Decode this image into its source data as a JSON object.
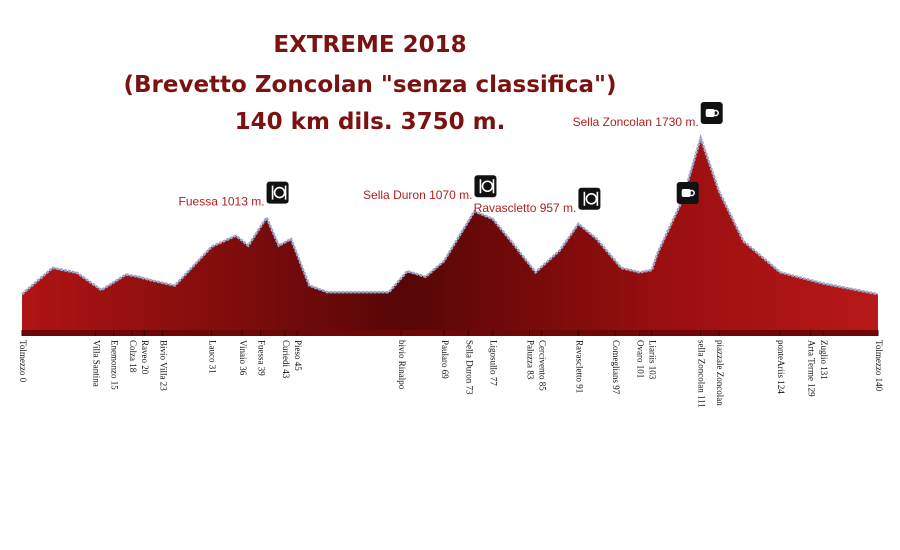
{
  "chart_data": {
    "type": "area",
    "title": [
      "EXTREME 2018",
      "(Brevetto Zoncolan \"senza classifica\")",
      "140 km  dils. 3750 m."
    ],
    "x": [
      0,
      5,
      9,
      13,
      17,
      19,
      21,
      25,
      31,
      35,
      37,
      40,
      42,
      44,
      47,
      50,
      60,
      63,
      66,
      69,
      74,
      77,
      80,
      84,
      88,
      91,
      94,
      98,
      101,
      103,
      104,
      108,
      111,
      114,
      118,
      124,
      131,
      140
    ],
    "series": [
      {
        "color": "#8e0d0d",
        "values": [
          323,
          560,
          515,
          360,
          500,
          480,
          450,
          400,
          750,
          850,
          760,
          1013,
          760,
          820,
          400,
          340,
          340,
          530,
          480,
          620,
          1070,
          1000,
          800,
          520,
          720,
          957,
          820,
          560,
          520,
          540,
          700,
          1170,
          1730,
          1250,
          800,
          520,
          420,
          323
        ]
      }
    ],
    "annotations": [
      {
        "text": "Fuessa 1013 m.",
        "x": 40,
        "y": 1013,
        "icon": "meal"
      },
      {
        "text": "Sella Duron 1070  m.",
        "x": 74,
        "y": 1070,
        "icon": "meal"
      },
      {
        "text": "Ravascletto 957 m.",
        "x": 91,
        "y": 957,
        "icon": "meal"
      },
      {
        "text": "Sella Zoncolan 1730  m.",
        "x": 111,
        "y": 1730,
        "icon": "cup"
      }
    ],
    "places": [
      {
        "label": "Tolmezzo 0",
        "x": 0
      },
      {
        "label": "Villa Santina",
        "x": 12
      },
      {
        "label": "Enemonzo 15",
        "x": 15
      },
      {
        "label": "Colza 18",
        "x": 18
      },
      {
        "label": "Raveo 20",
        "x": 20
      },
      {
        "label": "Bivio Villa 23",
        "x": 23
      },
      {
        "label": "Lauco 31",
        "x": 31
      },
      {
        "label": "Vinaio 36",
        "x": 36
      },
      {
        "label": "Fuessa 39",
        "x": 39
      },
      {
        "label": "Curiedi 43",
        "x": 43
      },
      {
        "label": "Pieso 45",
        "x": 45
      },
      {
        "label": "bivio Rinalpo",
        "x": 62
      },
      {
        "label": "Paularo 69",
        "x": 69
      },
      {
        "label": "Sella Duron 73",
        "x": 73
      },
      {
        "label": "Ligosullo 77",
        "x": 77
      },
      {
        "label": "Paluzza 83",
        "x": 83
      },
      {
        "label": "Cercivento 85",
        "x": 85
      },
      {
        "label": "Ravascletto 91",
        "x": 91
      },
      {
        "label": "Comeglians 97",
        "x": 97
      },
      {
        "label": "Ovaro 101",
        "x": 101
      },
      {
        "label": "Liariis 103",
        "x": 103
      },
      {
        "label": "sella Zoncolan 111",
        "x": 111
      },
      {
        "label": "piazzale Zoncolan",
        "x": 114
      },
      {
        "label": "ponteAriis 124",
        "x": 124
      },
      {
        "label": "Arta Terme 129",
        "x": 129
      },
      {
        "label": "Zuglio 131",
        "x": 131
      },
      {
        "label": "Tolmezzo 140",
        "x": 140
      }
    ]
  }
}
